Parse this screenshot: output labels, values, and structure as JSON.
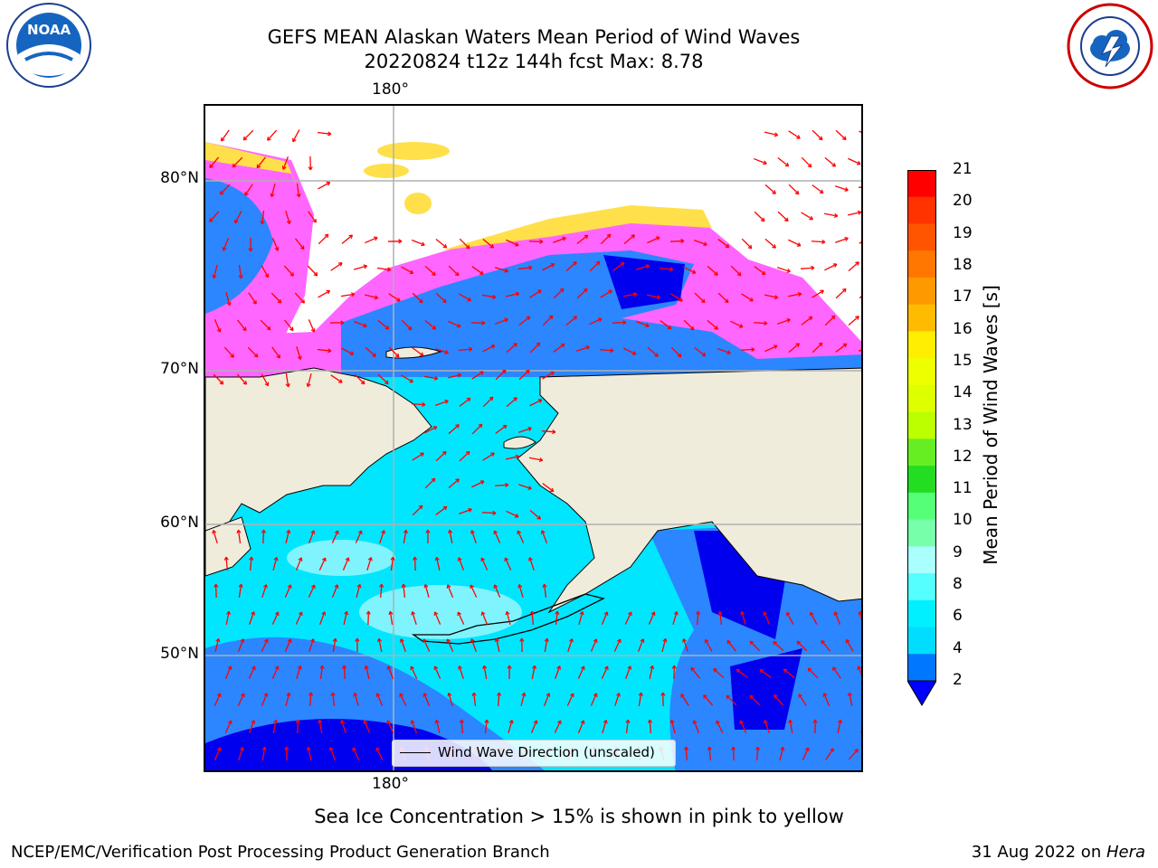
{
  "title": {
    "line1": "GEFS MEAN Alaskan Waters Mean Period of Wind Waves",
    "line2": "20220824 t12z 144h fcst   Max: 8.78"
  },
  "logos": {
    "left_name": "noaa-logo",
    "left_text": "NOAA",
    "right_name": "nws-logo"
  },
  "map": {
    "lat_labels": [
      "80°N",
      "70°N",
      "60°N",
      "50°N"
    ],
    "lon_label_top": "180°",
    "lon_label_bottom": "180°",
    "legend_text": "Wind Wave Direction (unscaled)",
    "colors": {
      "land": "#efecdc",
      "ocean_deep": "#0000ee",
      "ocean_blue": "#2b86ff",
      "ocean_cyan": "#00e6ff",
      "ocean_light": "#7ff4ff",
      "ice_pink": "#ff66ff",
      "ice_yellow": "#ffe04a",
      "arrow": "#ff0000",
      "grid": "#b0b0b0"
    }
  },
  "colorbar": {
    "label": "Mean Period of Wind Waves [s]",
    "ticks": [
      "21",
      "20",
      "19",
      "18",
      "17",
      "16",
      "15",
      "14",
      "13",
      "12",
      "11",
      "10",
      "9",
      "8",
      "6",
      "4",
      "2"
    ],
    "colors": [
      "#ff0000",
      "#ff3300",
      "#ff5500",
      "#ff7700",
      "#ff9900",
      "#ffbb00",
      "#ffee00",
      "#eeff00",
      "#ddff00",
      "#bbff00",
      "#66ee22",
      "#22dd22",
      "#55ff77",
      "#77ffaa",
      "#aaffff",
      "#55ffff",
      "#00f0ff",
      "#00ddff",
      "#0077ff"
    ],
    "extend_color": "#0000ff"
  },
  "captions": {
    "ice_note": "Sea Ice Concentration > 15% is shown in pink to yellow",
    "credit": "NCEP/EMC/Verification Post Processing Product Generation Branch",
    "date_prefix": "31 Aug 2022 on ",
    "machine": "Hera"
  }
}
